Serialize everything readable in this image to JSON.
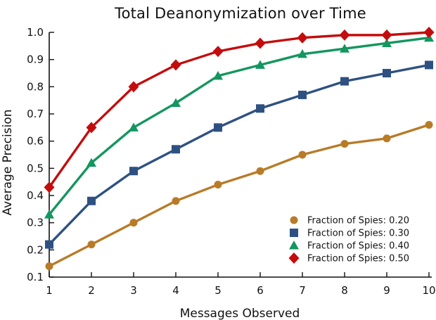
{
  "chart_data": {
    "type": "line",
    "title": "Total Deanonymization over Time",
    "xlabel": "Messages Observed",
    "ylabel": "Average Precision",
    "x": [
      1,
      2,
      3,
      4,
      5,
      6,
      7,
      8,
      9,
      10
    ],
    "xlim": [
      1,
      10
    ],
    "ylim": [
      0.1,
      1.0
    ],
    "xtick_labels": [
      "1",
      "2",
      "3",
      "4",
      "5",
      "6",
      "7",
      "8",
      "9",
      "10"
    ],
    "ytick_values": [
      0.1,
      0.2,
      0.3,
      0.4,
      0.5,
      0.6,
      0.7,
      0.8,
      0.9,
      1.0
    ],
    "ytick_labels": [
      "0.1",
      "0.2",
      "0.3",
      "0.4",
      "0.5",
      "0.6",
      "0.7",
      "0.8",
      "0.9",
      "1.0"
    ],
    "grid": false,
    "legend_position": "inside-right-lower",
    "series": [
      {
        "name": "Fraction of Spies: 0.20",
        "marker": "circle",
        "color": "#B87B28",
        "values": [
          0.14,
          0.22,
          0.3,
          0.38,
          0.44,
          0.49,
          0.55,
          0.59,
          0.61,
          0.66
        ]
      },
      {
        "name": "Fraction of Spies: 0.30",
        "marker": "square",
        "color": "#2E5181",
        "values": [
          0.22,
          0.38,
          0.49,
          0.57,
          0.65,
          0.72,
          0.77,
          0.82,
          0.85,
          0.88
        ]
      },
      {
        "name": "Fraction of Spies: 0.40",
        "marker": "triangle",
        "color": "#14965F",
        "values": [
          0.33,
          0.52,
          0.65,
          0.74,
          0.84,
          0.88,
          0.92,
          0.94,
          0.96,
          0.98
        ]
      },
      {
        "name": "Fraction of Spies: 0.50",
        "marker": "diamond",
        "color": "#C30D0D",
        "values": [
          0.43,
          0.65,
          0.8,
          0.88,
          0.93,
          0.96,
          0.98,
          0.99,
          0.99,
          1.0
        ]
      }
    ]
  },
  "colors": {
    "axis": "#111111",
    "text": "#111111",
    "background": "#ffffff"
  }
}
